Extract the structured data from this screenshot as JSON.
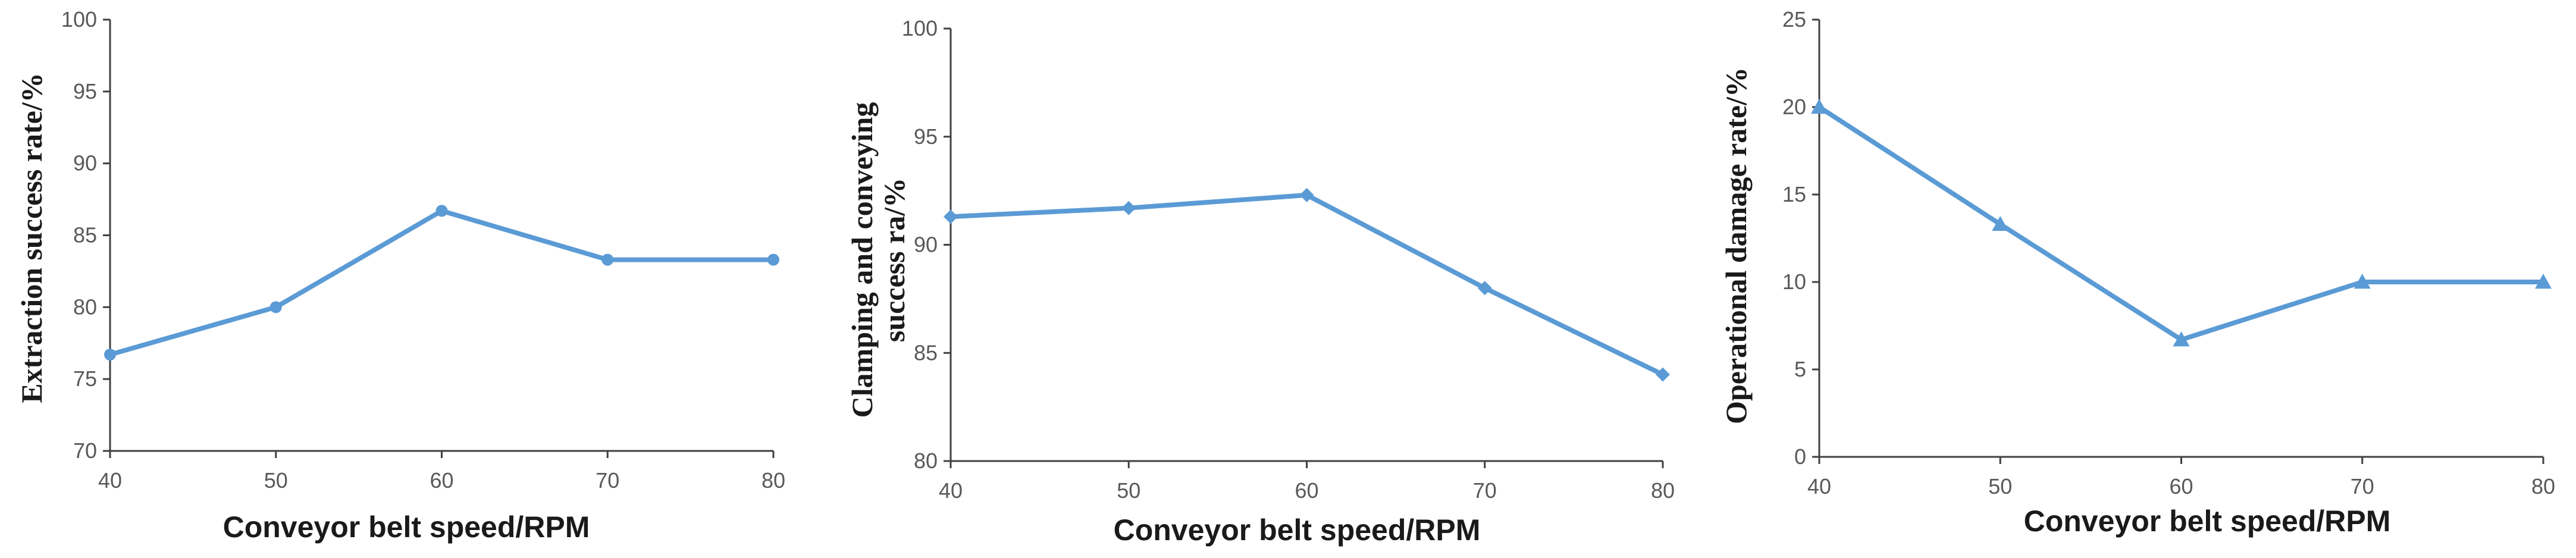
{
  "colors": {
    "series": "#5B9BD5",
    "axis": "#404040",
    "tick_text": "#595959"
  },
  "chart_data": [
    {
      "type": "line",
      "x": [
        40,
        50,
        60,
        70,
        80
      ],
      "series": [
        {
          "values": [
            76.7,
            80,
            86.7,
            83.3,
            83.3
          ],
          "marker": "circle"
        }
      ],
      "xlabel": "Conveyor belt speed/RPM",
      "ylabel": [
        "Extraction success rate/%"
      ],
      "xlim": [
        40,
        80
      ],
      "ylim": [
        70,
        100
      ],
      "yticks": [
        70,
        75,
        80,
        85,
        90,
        95,
        100
      ],
      "xticks": [
        40,
        50,
        60,
        70,
        80
      ],
      "grid": false,
      "legend": "none"
    },
    {
      "type": "line",
      "x": [
        40,
        50,
        60,
        70,
        80
      ],
      "series": [
        {
          "values": [
            91.3,
            91.7,
            92.3,
            88,
            84
          ],
          "marker": "diamond"
        }
      ],
      "xlabel": "Conveyor belt speed/RPM",
      "ylabel": [
        "Clamping and conveying",
        "success ra/%"
      ],
      "xlim": [
        40,
        80
      ],
      "ylim": [
        80,
        100
      ],
      "yticks": [
        80,
        85,
        90,
        95,
        100
      ],
      "xticks": [
        40,
        50,
        60,
        70,
        80
      ],
      "grid": false,
      "legend": "none"
    },
    {
      "type": "line",
      "x": [
        40,
        50,
        60,
        70,
        80
      ],
      "series": [
        {
          "values": [
            20,
            13.3,
            6.7,
            10,
            10
          ],
          "marker": "triangle"
        }
      ],
      "xlabel": "Conveyor belt speed/RPM",
      "ylabel": [
        "Operational damage rate/%"
      ],
      "xlim": [
        40,
        80
      ],
      "ylim": [
        0,
        25
      ],
      "yticks": [
        0,
        5,
        10,
        15,
        20,
        25
      ],
      "xticks": [
        40,
        50,
        60,
        70,
        80
      ],
      "grid": false,
      "legend": "none"
    }
  ]
}
